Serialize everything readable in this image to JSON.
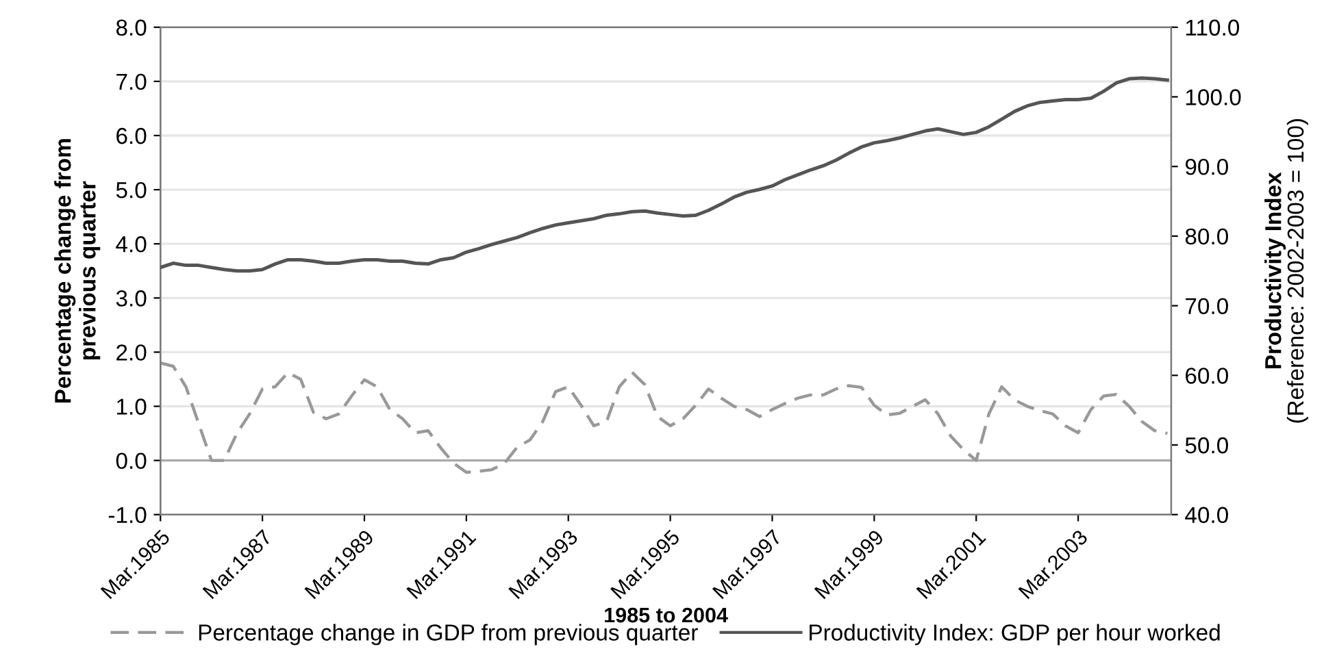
{
  "chart_data": {
    "type": "line",
    "xlabel": "1985 to 2004",
    "ylabel": "Percentage change from\nprevious quarter",
    "y2label": "Productivity Index\n(Reference: 2002-2003 = 100)",
    "categories": [
      "Mar.1985",
      null,
      null,
      null,
      null,
      null,
      null,
      null,
      "Mar.1987",
      null,
      null,
      null,
      null,
      null,
      null,
      null,
      "Mar.1989",
      null,
      null,
      null,
      null,
      null,
      null,
      null,
      "Mar.1991",
      null,
      null,
      null,
      null,
      null,
      null,
      null,
      "Mar.1993",
      null,
      null,
      null,
      null,
      null,
      null,
      null,
      "Mar.1995",
      null,
      null,
      null,
      null,
      null,
      null,
      null,
      "Mar.1997",
      null,
      null,
      null,
      null,
      null,
      null,
      null,
      "Mar.1999",
      null,
      null,
      null,
      null,
      null,
      null,
      null,
      "Mar.2001",
      null,
      null,
      null,
      null,
      null,
      null,
      null,
      "Mar.2003",
      null,
      null,
      null,
      null,
      null,
      null,
      null
    ],
    "series": [
      {
        "name": "Percentage change in GDP from previous quarter",
        "color": "#999999",
        "line_style": "dashed",
        "values": [
          1.8,
          1.74,
          1.36,
          0.68,
          0.0,
          0.0,
          0.5,
          0.86,
          1.32,
          1.36,
          1.62,
          1.5,
          0.89,
          0.77,
          0.86,
          1.19,
          1.49,
          1.36,
          0.94,
          0.77,
          0.51,
          0.55,
          0.23,
          -0.05,
          -0.22,
          -0.2,
          -0.17,
          -0.05,
          0.25,
          0.38,
          0.72,
          1.27,
          1.36,
          1.02,
          0.64,
          0.72,
          1.36,
          1.63,
          1.4,
          0.81,
          0.64,
          0.77,
          1.02,
          1.32,
          1.15,
          1.0,
          0.94,
          0.81,
          0.94,
          1.05,
          1.15,
          1.21,
          1.21,
          1.32,
          1.38,
          1.35,
          1.02,
          0.84,
          0.87,
          1.0,
          1.12,
          0.86,
          0.45,
          0.2,
          0.0,
          0.86,
          1.36,
          1.12,
          1.0,
          0.92,
          0.86,
          0.64,
          0.51,
          0.94,
          1.19,
          1.22,
          1.0,
          0.72,
          0.55,
          0.5
        ]
      },
      {
        "name": "Productivity Index: GDP per hour worked",
        "color": "#555555",
        "line_style": "solid",
        "axis": "y2",
        "values": [
          75.5,
          76.1,
          75.8,
          75.8,
          75.5,
          75.2,
          75.0,
          75.0,
          75.2,
          76.0,
          76.6,
          76.6,
          76.4,
          76.1,
          76.1,
          76.4,
          76.6,
          76.6,
          76.4,
          76.4,
          76.1,
          76.0,
          76.6,
          76.9,
          77.7,
          78.2,
          78.8,
          79.3,
          79.8,
          80.5,
          81.1,
          81.6,
          81.9,
          82.2,
          82.5,
          83.0,
          83.2,
          83.5,
          83.6,
          83.3,
          83.1,
          82.9,
          83.0,
          83.7,
          84.6,
          85.6,
          86.3,
          86.7,
          87.2,
          88.1,
          88.8,
          89.5,
          90.1,
          90.9,
          91.9,
          92.8,
          93.4,
          93.7,
          94.1,
          94.6,
          95.1,
          95.4,
          95.0,
          94.6,
          94.9,
          95.7,
          96.8,
          97.9,
          98.7,
          99.2,
          99.4,
          99.6,
          99.6,
          99.8,
          100.8,
          102.0,
          102.6,
          102.7,
          102.6,
          102.4
        ]
      }
    ],
    "ylim": [
      -1,
      8
    ],
    "yticks": [
      {
        "value": -1,
        "label": "-1.0"
      },
      {
        "value": 0,
        "label": "0.0"
      },
      {
        "value": 1,
        "label": "1.0"
      },
      {
        "value": 2,
        "label": "2.0"
      },
      {
        "value": 3,
        "label": "3.0"
      },
      {
        "value": 4,
        "label": "4.0"
      },
      {
        "value": 5,
        "label": "5.0"
      },
      {
        "value": 6,
        "label": "6.0"
      },
      {
        "value": 7,
        "label": "7.0"
      },
      {
        "value": 8,
        "label": "8.0"
      }
    ],
    "y2lim": [
      40,
      110
    ],
    "y2ticks": [
      {
        "value": 40,
        "label": "40.0"
      },
      {
        "value": 50,
        "label": "50.0"
      },
      {
        "value": 60,
        "label": "60.0"
      },
      {
        "value": 70,
        "label": "70.0"
      },
      {
        "value": 80,
        "label": "80.0"
      },
      {
        "value": 90,
        "label": "90.0"
      },
      {
        "value": 100,
        "label": "100.0"
      },
      {
        "value": 110,
        "label": "110.0"
      }
    ],
    "grid": "y",
    "legend": "bottom",
    "marker": "none"
  }
}
